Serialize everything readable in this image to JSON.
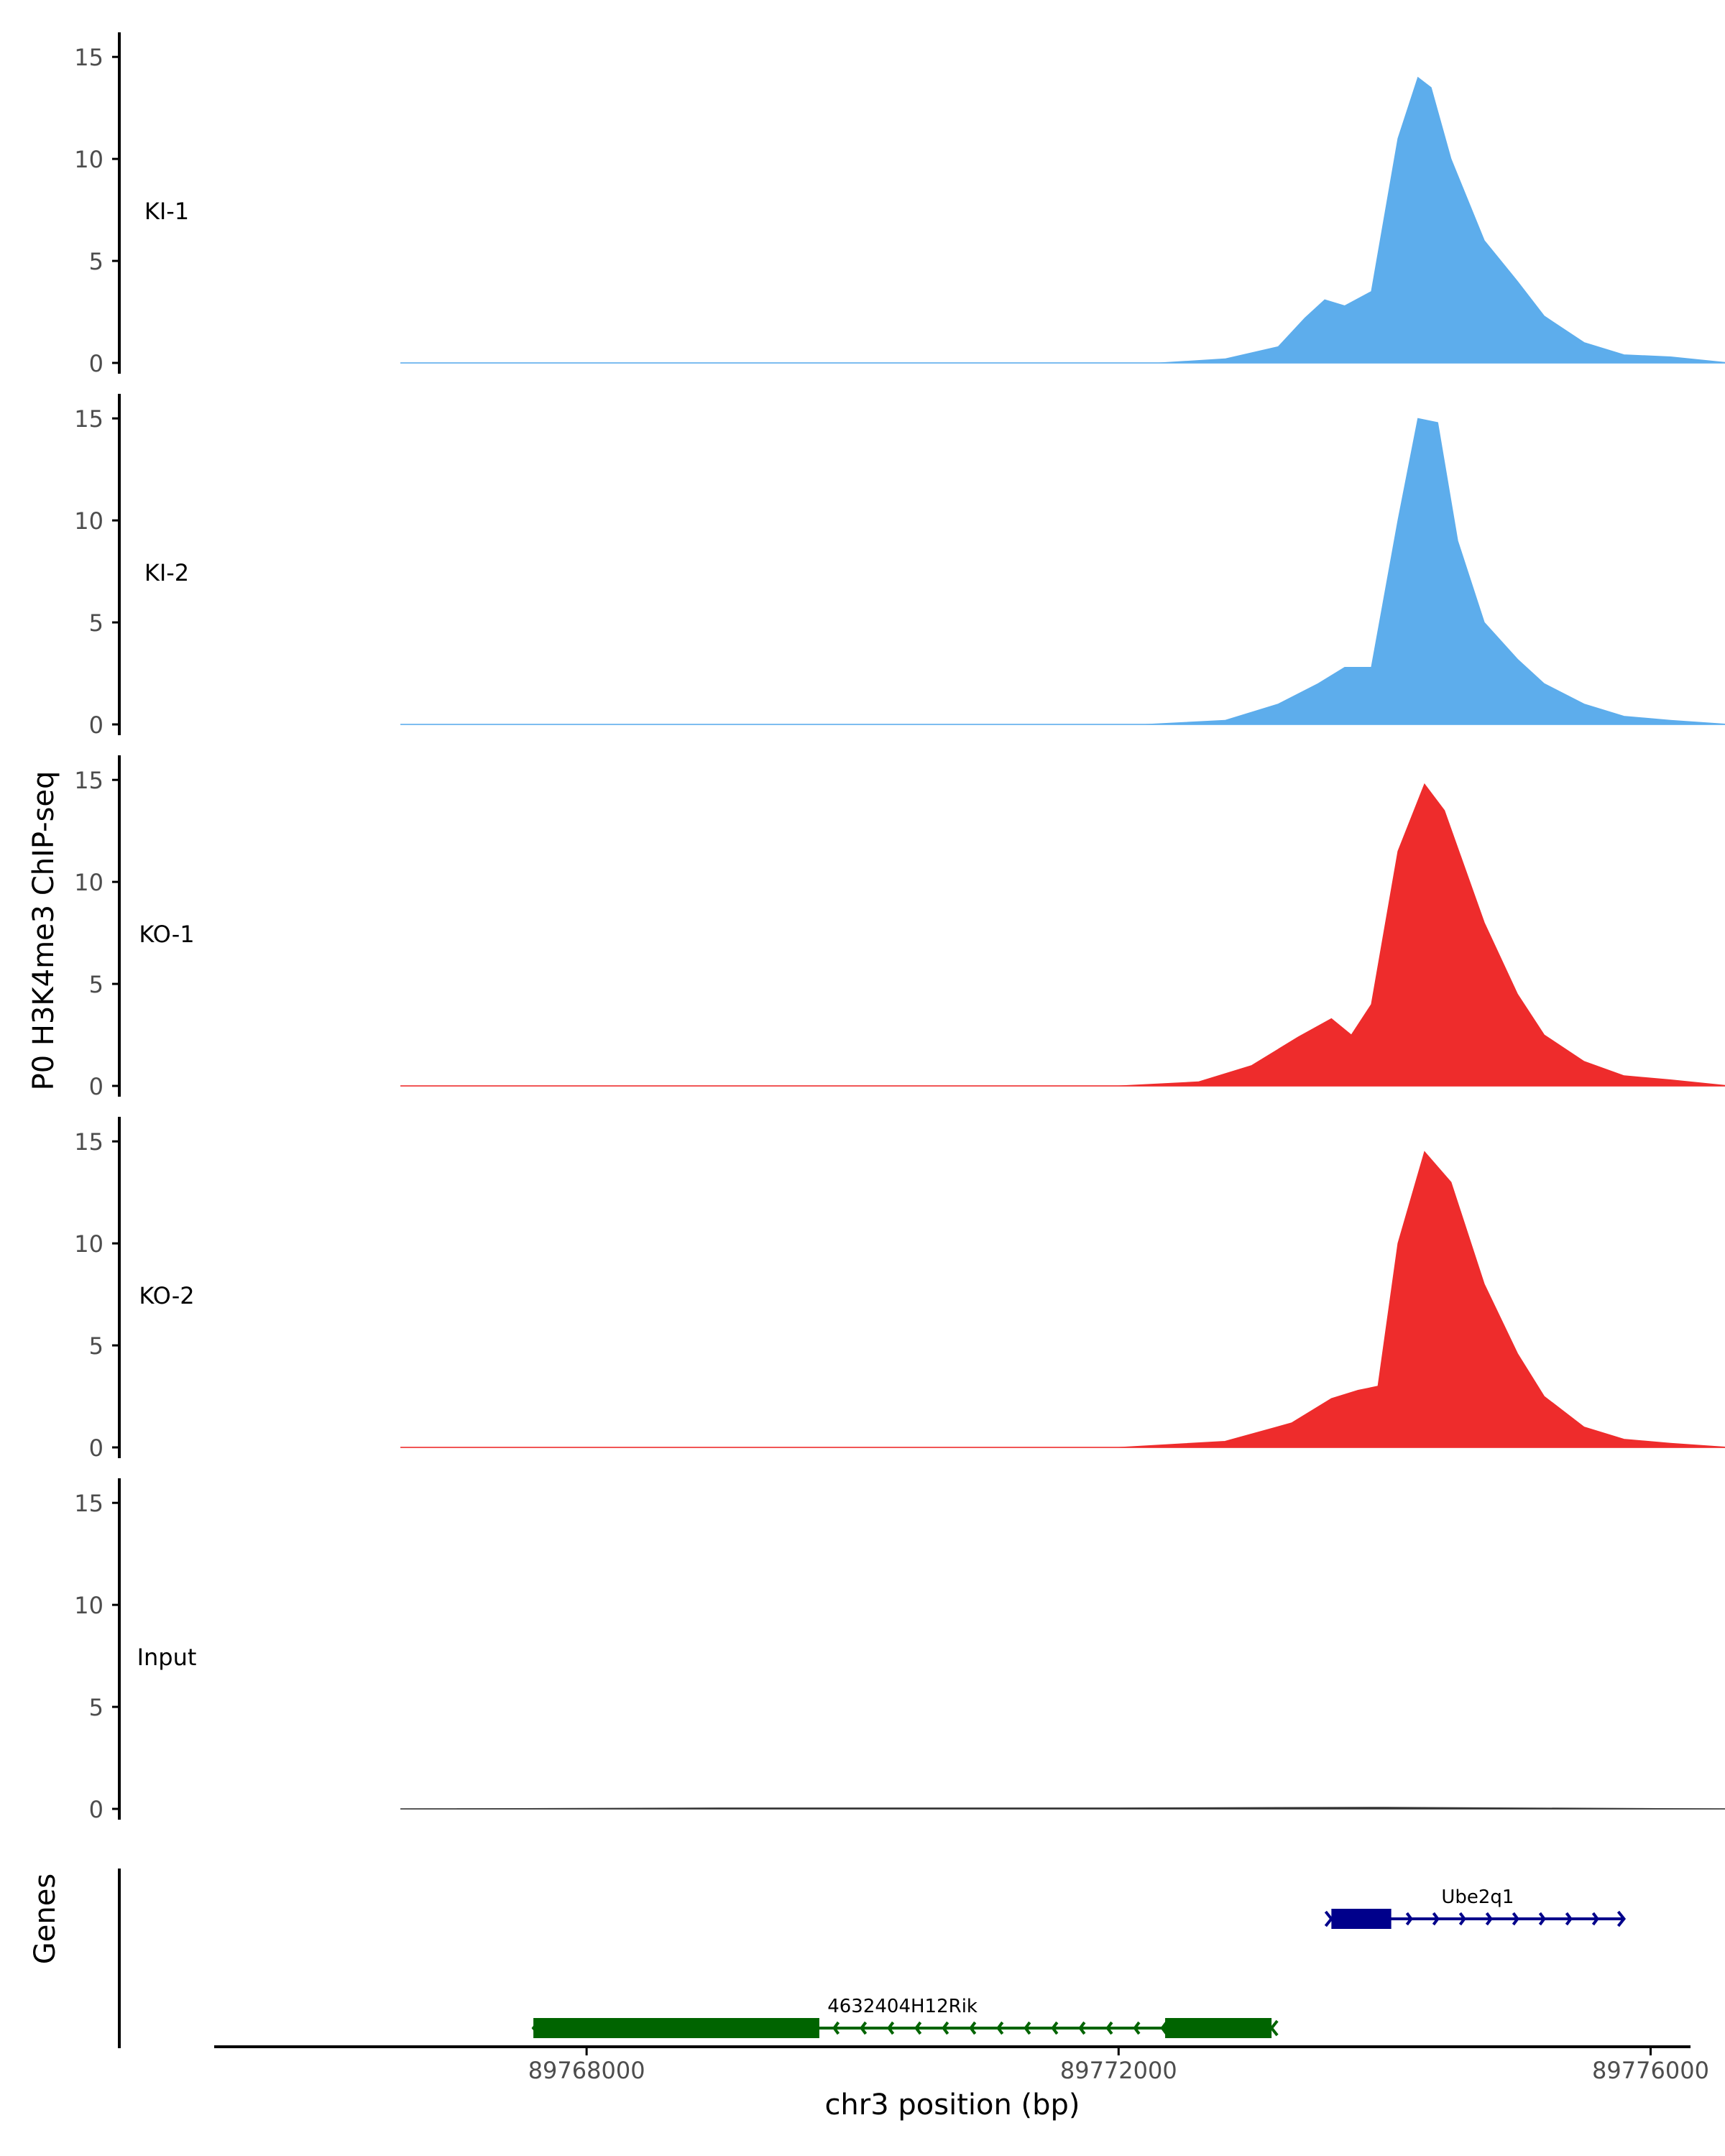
{
  "chart_data": {
    "type": "area",
    "title": "",
    "ylabel": "P0 H3K4me3 ChIP-seq",
    "xlabel": "chr3 position (bp)",
    "xlim": [
      89765200,
      89776300
    ],
    "ylim": [
      0,
      15.5
    ],
    "y_ticks": [
      0,
      5,
      10,
      15
    ],
    "x_ticks": [
      89768000,
      89772000,
      89776000
    ],
    "x_tick_labels": [
      "89768000",
      "89772000",
      "89776000"
    ],
    "colors": {
      "KI": "#5DADEC",
      "KO": "#EE2C2C",
      "Input": "#333333",
      "gene_plus": "#00008B",
      "gene_minus": "#006400",
      "axis": "#000000",
      "tick_label": "#4D4D4D"
    },
    "series": [
      {
        "name": "KI-1",
        "color": "#5DADEC",
        "x": [
          89766600,
          89772300,
          89772800,
          89773200,
          89773400,
          89773550,
          89773700,
          89773900,
          89774100,
          89774250,
          89774350,
          89774500,
          89774750,
          89775000,
          89775200,
          89775500,
          89775800,
          89776150,
          89776600
        ],
        "y": [
          0,
          0,
          0.2,
          0.8,
          2.2,
          3.1,
          2.8,
          3.5,
          11.0,
          14.0,
          13.5,
          10.0,
          6.0,
          4.0,
          2.3,
          1.0,
          0.4,
          0.3,
          0
        ]
      },
      {
        "name": "KI-2",
        "color": "#5DADEC",
        "x": [
          89766600,
          89772200,
          89772800,
          89773200,
          89773500,
          89773700,
          89773900,
          89774100,
          89774250,
          89774400,
          89774550,
          89774750,
          89775000,
          89775200,
          89775500,
          89775800,
          89776150,
          89776600
        ],
        "y": [
          0,
          0,
          0.2,
          1.0,
          2.0,
          2.8,
          2.8,
          10.0,
          15.0,
          14.8,
          9.0,
          5.0,
          3.2,
          2.0,
          1.0,
          0.4,
          0.2,
          0
        ]
      },
      {
        "name": "KO-1",
        "color": "#EE2C2C",
        "x": [
          89766600,
          89772000,
          89772600,
          89773000,
          89773350,
          89773600,
          89773750,
          89773900,
          89774100,
          89774300,
          89774450,
          89774750,
          89775000,
          89775200,
          89775500,
          89775800,
          89776150,
          89776600
        ],
        "y": [
          0,
          0,
          0.2,
          1.0,
          2.4,
          3.3,
          2.5,
          4.0,
          11.5,
          14.8,
          13.5,
          8.0,
          4.5,
          2.5,
          1.2,
          0.5,
          0.3,
          0
        ]
      },
      {
        "name": "KO-2",
        "color": "#EE2C2C",
        "x": [
          89766600,
          89772000,
          89772800,
          89773300,
          89773600,
          89773800,
          89773950,
          89774100,
          89774300,
          89774500,
          89774750,
          89775000,
          89775200,
          89775500,
          89775800,
          89776150,
          89776600
        ],
        "y": [
          0,
          0,
          0.3,
          1.2,
          2.4,
          2.8,
          3.0,
          10.0,
          14.5,
          13.0,
          8.0,
          4.6,
          2.5,
          1.0,
          0.4,
          0.2,
          0
        ]
      },
      {
        "name": "Input",
        "color": "#333333",
        "x": [
          89766600,
          89769000,
          89772000,
          89774000,
          89776600
        ],
        "y": [
          0,
          0.05,
          0.05,
          0.08,
          0
        ]
      }
    ],
    "gene_track_label": "Genes",
    "genes": [
      {
        "name": "Ube2q1",
        "strand": "+",
        "color": "#00008B",
        "start": 89773600,
        "end": 89775800,
        "exons": [
          [
            89773600,
            89774050
          ]
        ]
      },
      {
        "name": "4632404H12Rik",
        "strand": "-",
        "color": "#006400",
        "start": 89767600,
        "end": 89773150,
        "exons": [
          [
            89767600,
            89769750
          ],
          [
            89772350,
            89773150
          ]
        ]
      }
    ]
  }
}
